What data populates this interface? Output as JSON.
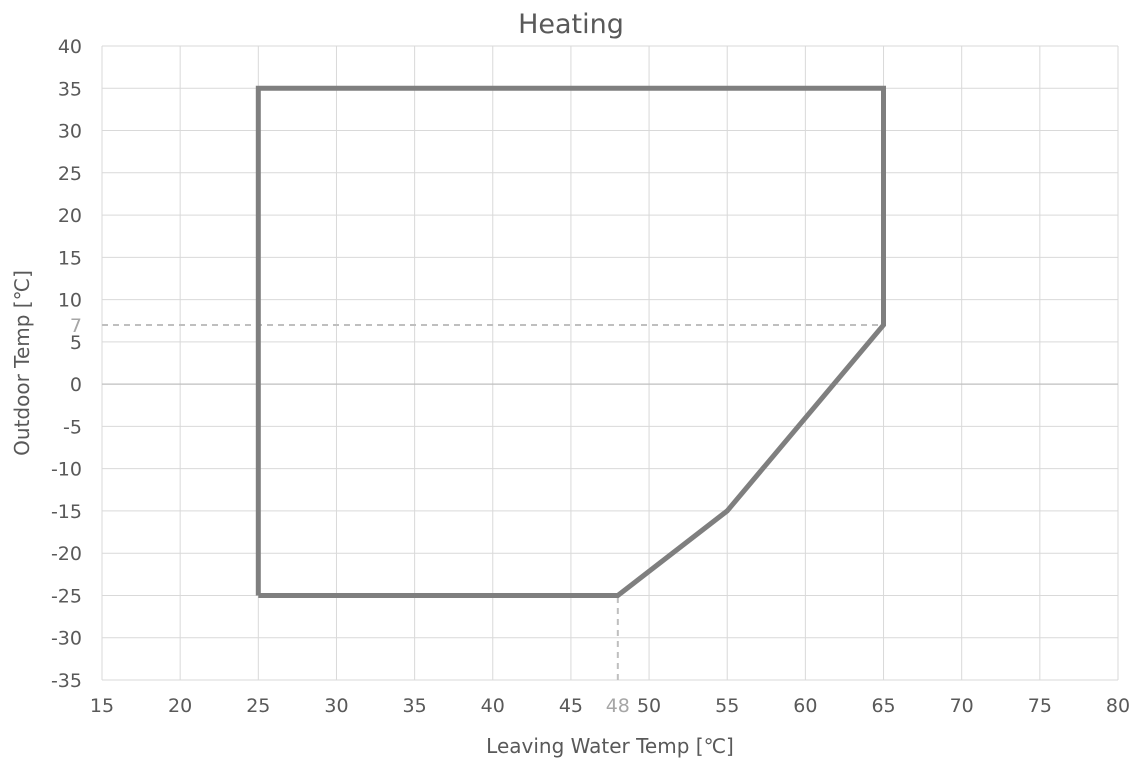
{
  "chart_data": {
    "type": "line",
    "title": "Heating",
    "xlabel": "Leaving Water Temp [℃]",
    "ylabel": "Outdoor  Temp [℃]",
    "xlim": [
      15,
      80
    ],
    "ylim": [
      -35,
      40
    ],
    "x_ticks": [
      "15",
      "20",
      "25",
      "30",
      "35",
      "40",
      "45",
      "50",
      "55",
      "60",
      "65",
      "70",
      "75",
      "80"
    ],
    "y_ticks": [
      "40",
      "35",
      "30",
      "25",
      "20",
      "15",
      "10",
      "5",
      "0",
      "-5",
      "-10",
      "-15",
      "-20",
      "-25",
      "-30",
      "-35"
    ],
    "grid": true,
    "series": [
      {
        "color": "#7f7f7f",
        "x": [
          25,
          25,
          65,
          65,
          55,
          48,
          25
        ],
        "y": [
          -25,
          35,
          35,
          7,
          -15,
          -25,
          -25
        ]
      }
    ],
    "reference_lines": [
      {
        "orientation": "horizontal",
        "y": 7,
        "x_from": 15,
        "x_to": 65,
        "label": "7",
        "color": "#bfbfbf"
      },
      {
        "orientation": "vertical",
        "x": 48,
        "y_from": -35,
        "y_to": -25,
        "label": "48",
        "color": "#bfbfbf"
      }
    ]
  }
}
